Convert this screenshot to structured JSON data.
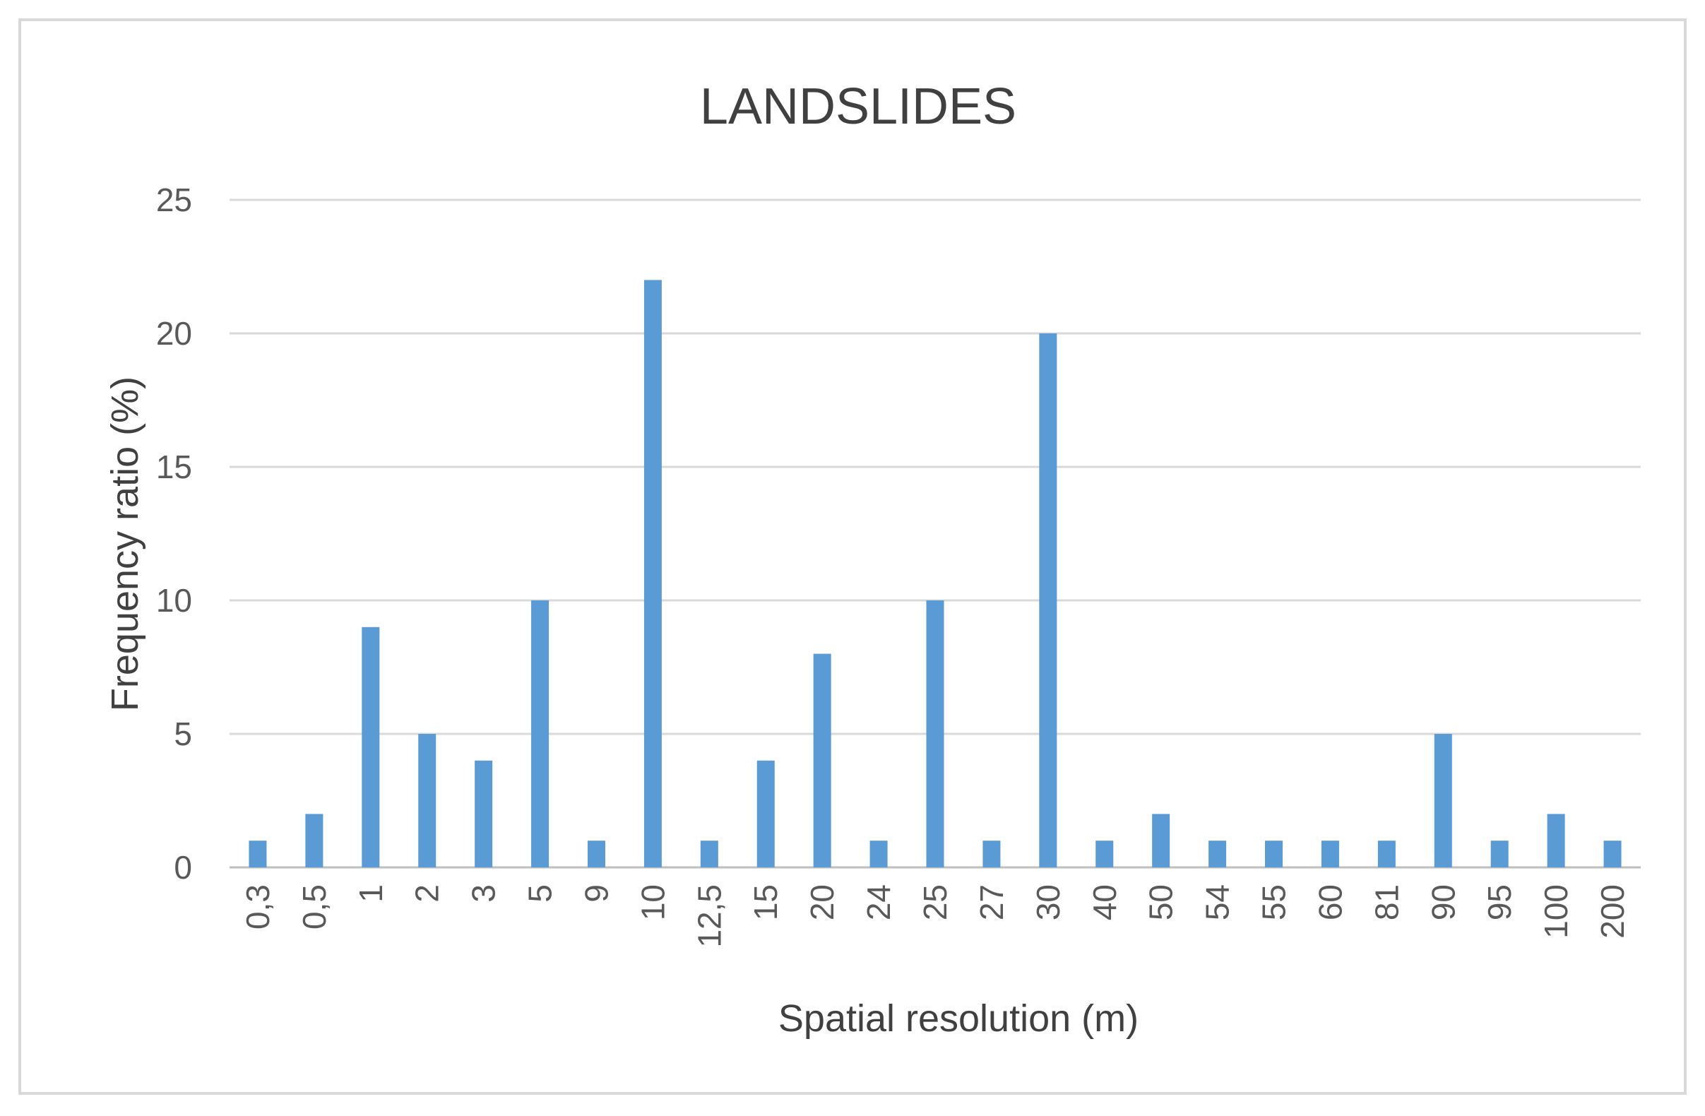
{
  "chart_data": {
    "type": "bar",
    "title": "LANDSLIDES",
    "xlabel": "Spatial resolution (m)",
    "ylabel": "Frequency ratio (%)",
    "ylim": [
      0,
      25
    ],
    "yticks": [
      0,
      5,
      10,
      15,
      20,
      25
    ],
    "grid": true,
    "legend": "none",
    "color": "#5b9bd5",
    "categories": [
      "0,3",
      "0,5",
      "1",
      "2",
      "3",
      "5",
      "9",
      "10",
      "12,5",
      "15",
      "20",
      "24",
      "25",
      "27",
      "30",
      "40",
      "50",
      "54",
      "55",
      "60",
      "81",
      "90",
      "95",
      "100",
      "200"
    ],
    "values": [
      1,
      2,
      9,
      5,
      4,
      10,
      1,
      22,
      1,
      4,
      8,
      1,
      10,
      1,
      20,
      1,
      2,
      1,
      1,
      1,
      1,
      5,
      1,
      2,
      1
    ]
  }
}
